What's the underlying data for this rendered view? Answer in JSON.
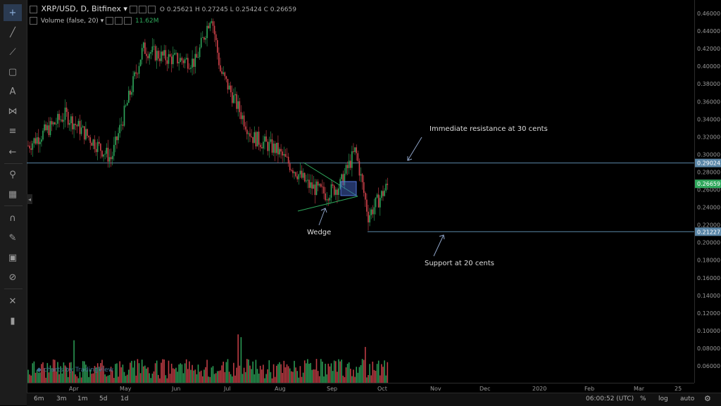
{
  "header": {
    "symbol": "XRP/USD, D, Bitfinex",
    "ohlc": "O 0.25621  H 0.27245  L 0.25424  C 0.26659",
    "volume_label": "Volume (false, 20)",
    "volume_value": "11.62M"
  },
  "annotations": {
    "resistance": "Immediate resistance at 30 cents",
    "support": "Support at 20 cents",
    "wedge": "Wedge"
  },
  "branding": "charts by TradingView",
  "bottom_bar": {
    "ranges": [
      "6m",
      "3m",
      "1m",
      "5d",
      "1d"
    ],
    "time": "06:00:52 (UTC)",
    "pct": "%",
    "log": "log",
    "auto": "auto"
  },
  "colors": {
    "up": "#2fa85c",
    "down": "#d2434b",
    "hline": "#5b87a8",
    "axis": "#9a9a9a",
    "wedge": "#2fa85c",
    "box": "#3f5fb8"
  },
  "chart_data": {
    "type": "candlestick",
    "title": "XRP/USD, D, Bitfinex",
    "price_ticks": [
      "0.46000",
      "0.44000",
      "0.42000",
      "0.40000",
      "0.38000",
      "0.36000",
      "0.34000",
      "0.32000",
      "0.30000",
      "0.28000",
      "0.26000",
      "0.24000",
      "0.22000",
      "0.20000",
      "0.18000",
      "0.16000",
      "0.14000",
      "0.12000",
      "0.10000",
      "0.08000",
      "0.06000"
    ],
    "price_labels": [
      {
        "text": "0.29024",
        "value": 0.29024
      },
      {
        "text": "0.26659",
        "value": 0.26659
      },
      {
        "text": "0.21227",
        "value": 0.21227
      }
    ],
    "x_ticks": [
      "Apr",
      "May",
      "Jun",
      "Jul",
      "Aug",
      "Sep",
      "Oct",
      "Nov",
      "Dec",
      "2020",
      "Feb",
      "Mar",
      "25"
    ],
    "ylim": [
      0.045,
      0.475
    ],
    "horizontal_lines": [
      0.29024,
      0.21227
    ],
    "path_months": [
      "Mar 15",
      "Apr 10",
      "May 1",
      "May 12",
      "May 30",
      "Jun 15",
      "Jun 28",
      "Jul 8",
      "Jul 25",
      "Aug 8",
      "Aug 20",
      "Sep 5",
      "Sep 20",
      "Sep 23",
      "Sep 28",
      "Oct 7"
    ],
    "path_close": [
      0.31,
      0.345,
      0.295,
      0.42,
      0.41,
      0.405,
      0.46,
      0.395,
      0.32,
      0.305,
      0.265,
      0.255,
      0.265,
      0.305,
      0.23,
      0.26659
    ]
  }
}
